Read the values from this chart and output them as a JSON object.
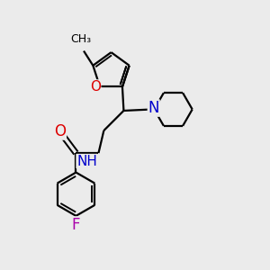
{
  "bg_color": "#ebebeb",
  "bond_color": "#000000",
  "bond_width": 1.6,
  "atom_colors": {
    "O": "#dd0000",
    "N": "#0000cc",
    "F": "#aa00aa",
    "C": "#000000"
  },
  "font_size": 11,
  "figsize": [
    3.0,
    3.0
  ],
  "dpi": 100
}
